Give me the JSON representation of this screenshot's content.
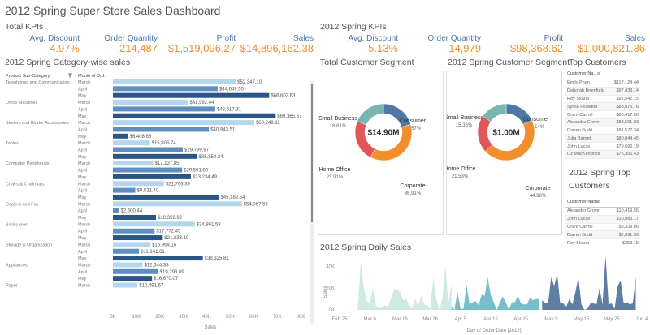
{
  "dashboard": {
    "title": "2012 Spring  Super Store Sales Dashboard"
  },
  "total_kpis": {
    "title": "Total KPIs",
    "items": [
      {
        "label": "Avg. Discount",
        "value": "4.97%"
      },
      {
        "label": "Order Quantity",
        "value": "214,487"
      },
      {
        "label": "Profit",
        "value": "$1,519,096.27"
      },
      {
        "label": "Sales",
        "value": "$14,896,162.38"
      }
    ]
  },
  "spring_kpis": {
    "title": "2012 Spring KPIs",
    "items": [
      {
        "label": "Avg. Discount",
        "value": "5.13%"
      },
      {
        "label": "Order Quantity",
        "value": "14,979"
      },
      {
        "label": "Profit",
        "value": "$98,368.62"
      },
      {
        "label": "Sales",
        "value": "$1,000,821.36"
      }
    ]
  },
  "colors": {
    "march": "#b5d7ee",
    "april": "#5e8fc0",
    "may": "#2a5687",
    "kpi_label": "#4e79a7",
    "kpi_value": "#f28e2b",
    "consumer": "#4e79a7",
    "corporate": "#f28e2b",
    "home_office": "#e15759",
    "small_business": "#76b7b2",
    "area_march": "#cfe9e3",
    "area_april": "#79bccb",
    "area_may": "#5f7ea3"
  },
  "chart_data": [
    {
      "type": "bar",
      "title": "2012 Spring Category-wise sales",
      "xlabel": "Sales",
      "header_category": "Product Sub-Category",
      "header_month": "Month of Ord..",
      "xlim": [
        0,
        80000
      ],
      "xticks": [
        "0K",
        "10K",
        "20K",
        "30K",
        "40K",
        "50K",
        "60K",
        "70K",
        "80K"
      ],
      "rows": [
        {
          "category": "Telephones and Communication",
          "month": "March",
          "value": 52347.1,
          "label": "$52,347.10"
        },
        {
          "category": "",
          "month": "April",
          "value": 44649.55,
          "label": "$44,649.55"
        },
        {
          "category": "",
          "month": "May",
          "value": 66602.63,
          "label": "$66,602.63"
        },
        {
          "category": "Office Machines",
          "month": "March",
          "value": 31992.44,
          "label": "$31,992.44"
        },
        {
          "category": "",
          "month": "April",
          "value": 43617.31,
          "label": "$43,617.31"
        },
        {
          "category": "",
          "month": "May",
          "value": 69365.67,
          "label": "$69,365.67"
        },
        {
          "category": "Binders and Binder Accessories",
          "month": "March",
          "value": 60249.11,
          "label": "$60,249.11"
        },
        {
          "category": "",
          "month": "April",
          "value": 40943.51,
          "label": "$40,943.51"
        },
        {
          "category": "",
          "month": "May",
          "value": 6408.86,
          "label": "$6,408.86"
        },
        {
          "category": "Tables",
          "month": "March",
          "value": 15805.74,
          "label": "$15,805.74"
        },
        {
          "category": "",
          "month": "April",
          "value": 29799.97,
          "label": "$29,799.97"
        },
        {
          "category": "",
          "month": "May",
          "value": 35854.24,
          "label": "$35,854.24"
        },
        {
          "category": "Computer Peripherals",
          "month": "March",
          "value": 17137.85,
          "label": "$17,137.85"
        },
        {
          "category": "",
          "month": "April",
          "value": 29501.8,
          "label": "$29,501.80"
        },
        {
          "category": "",
          "month": "May",
          "value": 33234.49,
          "label": "$33,234.49"
        },
        {
          "category": "Chairs & Chairmats",
          "month": "March",
          "value": 21766.39,
          "label": "$21,766.39"
        },
        {
          "category": "",
          "month": "April",
          "value": 9531.4,
          "label": "$9,531.40"
        },
        {
          "category": "",
          "month": "May",
          "value": 45182.54,
          "label": "$45,182.54"
        },
        {
          "category": "Copiers and Fax",
          "month": "March",
          "value": 54967.56,
          "label": "$54,967.56"
        },
        {
          "category": "",
          "month": "April",
          "value": 2600.44,
          "label": "$2,600.44"
        },
        {
          "category": "",
          "month": "May",
          "value": 18359.92,
          "label": "$18,359.92"
        },
        {
          "category": "Bookcases",
          "month": "March",
          "value": 34861.58,
          "label": "$34,861.58"
        },
        {
          "category": "",
          "month": "April",
          "value": 17772.45,
          "label": "$17,772.45"
        },
        {
          "category": "",
          "month": "May",
          "value": 21233.1,
          "label": "$21,233.10"
        },
        {
          "category": "Storage & Organization",
          "month": "March",
          "value": 15964.16,
          "label": "$15,964.16"
        },
        {
          "category": "",
          "month": "April",
          "value": 11141.61,
          "label": "$11,141.61"
        },
        {
          "category": "",
          "month": "May",
          "value": 38325.81,
          "label": "$38,325.81"
        },
        {
          "category": "Appliances",
          "month": "March",
          "value": 12644.38,
          "label": "$12,644.38"
        },
        {
          "category": "",
          "month": "April",
          "value": 19293.89,
          "label": "$19,293.89"
        },
        {
          "category": "",
          "month": "May",
          "value": 16670.07,
          "label": "$16,670.07"
        },
        {
          "category": "Paper",
          "month": "March",
          "value": 10491.67,
          "label": "$10,491.67"
        }
      ]
    },
    {
      "type": "pie",
      "title": "Total Customer Segment",
      "center_label": "$14.90M",
      "slices": [
        {
          "name": "Consumer",
          "pct": 20.57,
          "label": "20.57%"
        },
        {
          "name": "Corporate",
          "pct": 36.91,
          "label": "36.91%"
        },
        {
          "name": "Home Office",
          "pct": 23.91,
          "label": "23.91%"
        },
        {
          "name": "Small Business",
          "pct": 18.61,
          "label": "18.61%"
        }
      ]
    },
    {
      "type": "pie",
      "title": "2012 Spring Customer Segment",
      "center_label": "$1.00M",
      "slices": [
        {
          "name": "Consumer",
          "pct": 18.14,
          "label": "18.14%"
        },
        {
          "name": "Corporate",
          "pct": 44.98,
          "label": "44.98%"
        },
        {
          "name": "Home Office",
          "pct": 21.53,
          "label": "21.53%"
        },
        {
          "name": "Small Business",
          "pct": 15.36,
          "label": "15.36%"
        }
      ]
    },
    {
      "type": "area",
      "title": "2012 Spring Daily Sales",
      "xlabel": "Day of Order Date [2012]",
      "ylabel": "Sales",
      "ylim": [
        0,
        50000
      ],
      "yticks": [
        "0K",
        "20K",
        "40K"
      ],
      "ytick_values": [
        0,
        20000,
        40000
      ],
      "xticks": [
        "Feb 25",
        "Mar 6",
        "Mar 16",
        "Mar 26",
        "Apr 5",
        "Apr 15",
        "Apr 25",
        "May 5",
        "May 15",
        "May 25",
        "Jun 4"
      ],
      "xtick_days": [
        -5,
        5,
        15,
        25,
        35,
        45,
        55,
        65,
        75,
        85,
        95
      ],
      "series": [
        {
          "name": "March",
          "start_day": 1,
          "values": [
            0,
            44000,
            20000,
            8000,
            6000,
            20000,
            4000,
            2000,
            2000,
            4000,
            3000,
            10000,
            18000,
            19000,
            16000,
            9000,
            10000,
            5000,
            1000,
            10000,
            3000,
            13000,
            5000,
            4000,
            1000,
            30000,
            10000,
            0,
            10000,
            40000,
            6000,
            24000
          ]
        },
        {
          "name": "April",
          "start_day": 32,
          "values": [
            3000,
            0,
            17000,
            1000,
            1000,
            23000,
            5000,
            7000,
            8000,
            4000,
            14000,
            13000,
            30000,
            14000,
            7000,
            0,
            7000,
            12000,
            7000,
            0,
            7000,
            7000,
            13000,
            6000,
            5000,
            5000,
            11000,
            9000,
            10000,
            10000
          ]
        },
        {
          "name": "May",
          "start_day": 62,
          "values": [
            9000,
            6000,
            6000,
            30000,
            22000,
            33000,
            6000,
            6000,
            3000,
            10000,
            5000,
            16000,
            30000,
            5000,
            0,
            1000,
            6000,
            6000,
            5000,
            20000,
            5000,
            50000,
            5000,
            6000,
            1000,
            22000,
            27000,
            6000,
            7000,
            5000,
            6000,
            30000
          ]
        }
      ]
    }
  ],
  "top_customers": {
    "title": "Top Customers",
    "header": "Customer Na..",
    "rows": [
      {
        "name": "Emily Phan",
        "value": "$117,124.44"
      },
      {
        "name": "Deborah Brumfield",
        "value": "$97,433.14"
      },
      {
        "name": "Roy Skaria",
        "value": "$92,542.15"
      },
      {
        "name": "Sylvia Foulston",
        "value": "$88,875.76"
      },
      {
        "name": "Grant Carroll",
        "value": "$88,417.00"
      },
      {
        "name": "Alejandro Grove",
        "value": "$83,561.93"
      },
      {
        "name": "Darren Budd",
        "value": "$81,577.34"
      },
      {
        "name": "Julia Barnett",
        "value": "$80,044.45"
      },
      {
        "name": "John Lucas",
        "value": "$79,696.19"
      },
      {
        "name": "Liz MacKendrick",
        "value": "$76,306.43"
      }
    ]
  },
  "spring_top_customers": {
    "title_line1": "2012 Spring Top",
    "title_line2": "Customers",
    "header": "Customer Name",
    "rows": [
      {
        "name": "Alejandro Grove",
        "value": "$10,419.55"
      },
      {
        "name": "John Lucas",
        "value": "$10,083.17"
      },
      {
        "name": "Grant Carroll",
        "value": "$3,339.06"
      },
      {
        "name": "Darren Budd",
        "value": "$2,891.56"
      },
      {
        "name": "Roy Skaria",
        "value": "$253.15"
      }
    ]
  }
}
